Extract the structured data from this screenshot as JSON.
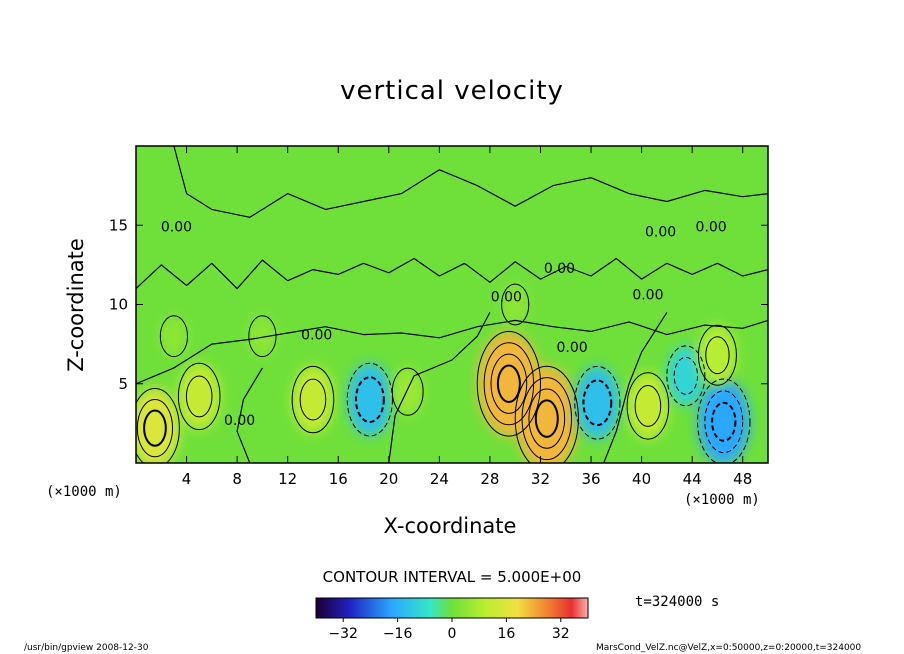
{
  "chart_data": {
    "type": "heatmap",
    "title": "vertical velocity",
    "xlabel": "X-coordinate",
    "ylabel": "Z-coordinate",
    "x_unit": "(×1000 m)",
    "y_unit": "(×1000 m)",
    "xlim": [
      0,
      50
    ],
    "ylim": [
      0,
      20
    ],
    "xticks": [
      4,
      8,
      12,
      16,
      20,
      24,
      28,
      32,
      36,
      40,
      44,
      48
    ],
    "yticks": [
      5,
      10,
      15
    ],
    "contour_interval": "CONTOUR INTERVAL = 5.000E+00",
    "contour_labels": [
      "0.00",
      "0.00",
      "0.00",
      "0.00",
      "0.00",
      "0.00",
      "0.00",
      "0.00",
      "0.00"
    ],
    "colorbar": {
      "min": -40,
      "max": 40,
      "ticks": [
        "−32",
        "−16",
        "0",
        "16",
        "32"
      ]
    },
    "background_color": "#6fe03a",
    "features": [
      {
        "x": 1.5,
        "y": 2.2,
        "value": 16
      },
      {
        "x": 5.0,
        "y": 4.2,
        "value": 12
      },
      {
        "x": 14.0,
        "y": 4.0,
        "value": 12
      },
      {
        "x": 18.5,
        "y": 4.0,
        "value": -14
      },
      {
        "x": 29.5,
        "y": 5.0,
        "value": 24
      },
      {
        "x": 32.5,
        "y": 2.8,
        "value": 24
      },
      {
        "x": 36.5,
        "y": 3.8,
        "value": -14
      },
      {
        "x": 40.5,
        "y": 3.6,
        "value": 12
      },
      {
        "x": 43.5,
        "y": 5.5,
        "value": -10
      },
      {
        "x": 46.5,
        "y": 2.6,
        "value": -18
      },
      {
        "x": 46.0,
        "y": 6.8,
        "value": 10
      },
      {
        "x": 21.5,
        "y": 4.5,
        "value": 6
      },
      {
        "x": 10.0,
        "y": 8.0,
        "value": 4
      },
      {
        "x": 30.0,
        "y": 10.0,
        "value": 4
      },
      {
        "x": 3.0,
        "y": 8.0,
        "value": 4
      }
    ]
  },
  "time_label": "t=324000 s",
  "footer_left": "/usr/bin/gpview  2008-12-30",
  "footer_right": "MarsCond_VelZ.nc@VelZ,x=0:50000,z=0:20000,t=324000"
}
